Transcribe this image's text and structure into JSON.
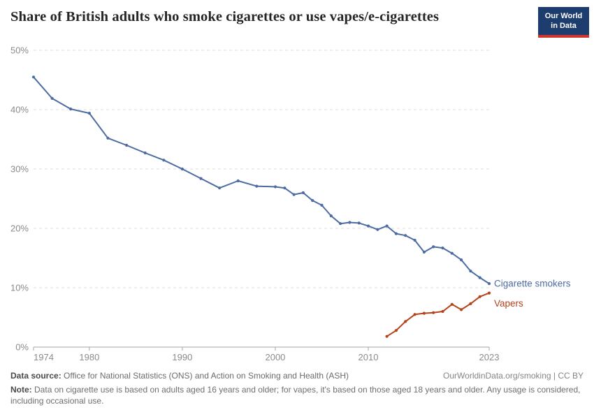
{
  "header": {
    "title": "Share of British adults who smoke cigarettes or use vapes/e-cigarettes",
    "logo": {
      "line1": "Our World",
      "line2": "in Data"
    }
  },
  "colors": {
    "smokers_blue": "#4C6CA3",
    "vapers_red": "#B5431C",
    "gridline": "#dcdcdc",
    "axis": "#a5a5a5",
    "tick_label": "#8b8b8b",
    "logo_navy": "#1C3D6D",
    "logo_red": "#D0352D"
  },
  "chart_data": {
    "type": "line",
    "title": "Share of British adults who smoke cigarettes or use vapes/e-cigarettes",
    "xlabel": "",
    "ylabel": "",
    "xlim": [
      1974,
      2023
    ],
    "ylim": [
      0,
      50
    ],
    "x_ticks": [
      1974,
      1980,
      1990,
      2000,
      2010,
      2023
    ],
    "y_ticks": [
      0,
      10,
      20,
      30,
      40,
      50
    ],
    "y_tick_suffix": "%",
    "grid": "dashed-horizontal",
    "legend_position": "end-of-line-labels",
    "series": [
      {
        "name": "Cigarette smokers",
        "color": "#4C6CA3",
        "x": [
          1974,
          1976,
          1978,
          1980,
          1982,
          1984,
          1986,
          1988,
          1990,
          1992,
          1994,
          1996,
          1998,
          2000,
          2001,
          2002,
          2003,
          2004,
          2005,
          2006,
          2007,
          2008,
          2009,
          2010,
          2011,
          2012,
          2013,
          2014,
          2015,
          2016,
          2017,
          2018,
          2019,
          2020,
          2021,
          2022,
          2023
        ],
        "values": [
          45.5,
          41.9,
          40.1,
          39.4,
          35.2,
          34.0,
          32.7,
          31.5,
          30.0,
          28.4,
          26.8,
          28.0,
          27.1,
          27.0,
          26.8,
          25.7,
          26.0,
          24.7,
          23.9,
          22.1,
          20.8,
          21.0,
          20.9,
          20.4,
          19.8,
          20.4,
          19.1,
          18.8,
          18.0,
          16.0,
          16.9,
          16.7,
          15.8,
          14.7,
          12.8,
          11.7,
          10.7
        ]
      },
      {
        "name": "Vapers",
        "color": "#B5431C",
        "x": [
          2012,
          2013,
          2014,
          2015,
          2016,
          2017,
          2018,
          2019,
          2020,
          2021,
          2022,
          2023
        ],
        "values": [
          1.8,
          2.8,
          4.3,
          5.5,
          5.7,
          5.8,
          6.0,
          7.2,
          6.3,
          7.3,
          8.5,
          9.1
        ]
      }
    ]
  },
  "footer": {
    "source_label": "Data source:",
    "source_text": "Office for National Statistics (ONS) and Action on Smoking and Health (ASH)",
    "attribution": "OurWorldinData.org/smoking | CC BY",
    "note_label": "Note:",
    "note_text": "Data on cigarette use is based on adults aged 16 years and older; for vapes, it's based on those aged 18 years and older. Any usage is considered, including occasional use."
  }
}
